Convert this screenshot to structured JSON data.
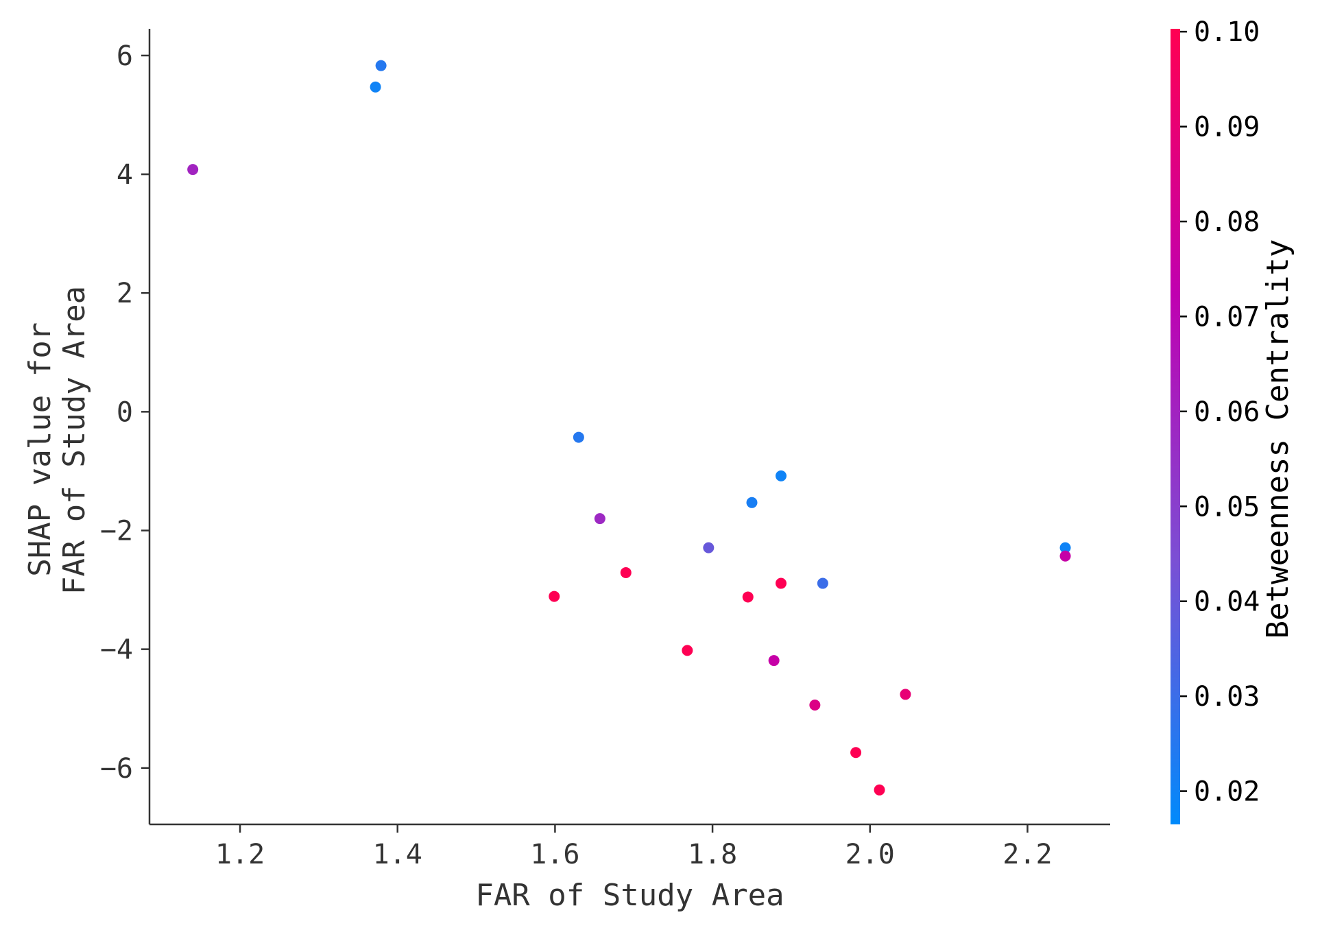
{
  "chart_data": {
    "type": "scatter",
    "title": "",
    "xlabel": "FAR of Study Area",
    "ylabel_lines": [
      "SHAP value for",
      "FAR of Study Area"
    ],
    "xlim": [
      1.085,
      2.305
    ],
    "ylim": [
      -6.95,
      6.45
    ],
    "x_ticks": [
      1.2,
      1.4,
      1.6,
      1.8,
      2.0,
      2.2
    ],
    "x_tick_labels": [
      "1.2",
      "1.4",
      "1.6",
      "1.8",
      "2.0",
      "2.2"
    ],
    "y_ticks": [
      6,
      4,
      2,
      0,
      -2,
      -4,
      -6
    ],
    "y_tick_labels": [
      "6",
      "4",
      "2",
      "0",
      "−2",
      "−4",
      "−6"
    ],
    "grid": false,
    "colorbar": {
      "label": "Betweenness Centrality",
      "range": [
        0.0165,
        0.1003
      ],
      "ticks": [
        0.02,
        0.03,
        0.04,
        0.05,
        0.06,
        0.07,
        0.08,
        0.09,
        0.1
      ],
      "tick_labels": [
        "0.02",
        "0.03",
        "0.04",
        "0.05",
        "0.06",
        "0.07",
        "0.08",
        "0.09",
        "0.10"
      ],
      "colormap": [
        "#008afb",
        "#7b4fd4",
        "#c000b0",
        "#ff0052"
      ]
    },
    "points": [
      {
        "x": 1.14,
        "y": 4.08,
        "c": 0.06
      },
      {
        "x": 1.372,
        "y": 5.47,
        "c": 0.02
      },
      {
        "x": 1.379,
        "y": 5.83,
        "c": 0.025
      },
      {
        "x": 1.599,
        "y": -3.11,
        "c": 0.1
      },
      {
        "x": 1.63,
        "y": -0.43,
        "c": 0.025
      },
      {
        "x": 1.657,
        "y": -1.8,
        "c": 0.058
      },
      {
        "x": 1.69,
        "y": -2.71,
        "c": 0.1
      },
      {
        "x": 1.768,
        "y": -4.02,
        "c": 0.1
      },
      {
        "x": 1.795,
        "y": -2.29,
        "c": 0.04
      },
      {
        "x": 1.845,
        "y": -3.12,
        "c": 0.1
      },
      {
        "x": 1.85,
        "y": -1.53,
        "c": 0.022
      },
      {
        "x": 1.878,
        "y": -4.19,
        "c": 0.075
      },
      {
        "x": 1.887,
        "y": -1.08,
        "c": 0.02
      },
      {
        "x": 1.887,
        "y": -2.89,
        "c": 0.1
      },
      {
        "x": 1.93,
        "y": -4.94,
        "c": 0.085
      },
      {
        "x": 1.94,
        "y": -2.89,
        "c": 0.03
      },
      {
        "x": 1.982,
        "y": -5.74,
        "c": 0.1
      },
      {
        "x": 2.012,
        "y": -6.37,
        "c": 0.1
      },
      {
        "x": 2.045,
        "y": -4.76,
        "c": 0.09
      },
      {
        "x": 2.248,
        "y": -2.29,
        "c": 0.02
      },
      {
        "x": 2.248,
        "y": -2.43,
        "c": 0.075
      }
    ]
  }
}
